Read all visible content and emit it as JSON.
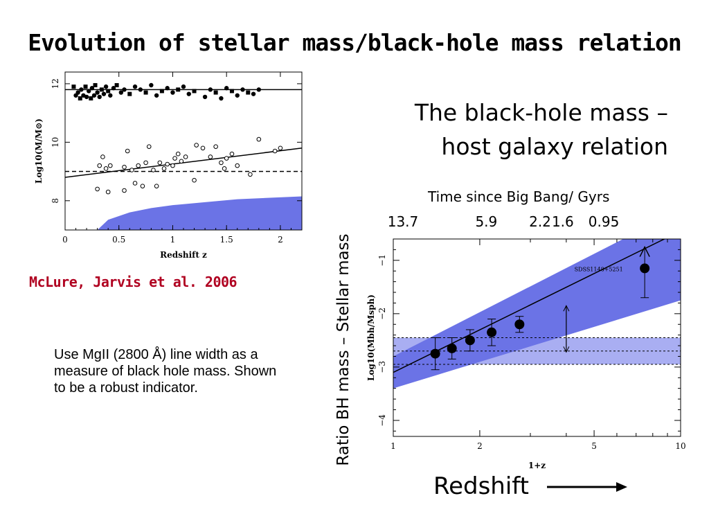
{
  "slide": {
    "title": "Evolution of stellar mass/black-hole mass relation",
    "subtitle_line1": "The black-hole mass –",
    "subtitle_line2": "host galaxy relation",
    "citation": "McLure, Jarvis et al. 2006",
    "note": "Use MgII (2800 Å) line width as a measure of black hole mass. Shown to be a robust indicator.",
    "time_axis_label": "Time since Big Bang/ Gyrs",
    "ratio_label": "Ratio BH mass – Stellar mass",
    "redshift_label": "Redshift"
  },
  "chart_data": [
    {
      "type": "scatter",
      "xlabel": "Redshift z",
      "ylabel": "Log10(M/M⊙)",
      "xlim": [
        0,
        2.2
      ],
      "ylim": [
        7.0,
        12.4
      ],
      "x_ticks": [
        "0",
        "0.5",
        "1",
        "1.5",
        "2"
      ],
      "y_ticks": [
        "8",
        "10",
        "12"
      ],
      "colors": {
        "band": "#6b73e6",
        "points": "#000000"
      },
      "series": [
        {
          "marker": "filled-square-circle",
          "points": [
            [
              0.08,
              11.9
            ],
            [
              0.1,
              11.6
            ],
            [
              0.12,
              11.7
            ],
            [
              0.14,
              11.5
            ],
            [
              0.15,
              11.8
            ],
            [
              0.17,
              11.6
            ],
            [
              0.19,
              11.9
            ],
            [
              0.2,
              11.55
            ],
            [
              0.22,
              11.75
            ],
            [
              0.24,
              11.5
            ],
            [
              0.25,
              11.85
            ],
            [
              0.27,
              11.6
            ],
            [
              0.28,
              11.95
            ],
            [
              0.3,
              11.7
            ],
            [
              0.32,
              11.55
            ],
            [
              0.34,
              11.8
            ],
            [
              0.36,
              11.65
            ],
            [
              0.38,
              11.9
            ],
            [
              0.4,
              11.75
            ],
            [
              0.42,
              11.6
            ],
            [
              0.45,
              11.85
            ],
            [
              0.48,
              11.95
            ],
            [
              0.52,
              11.7
            ],
            [
              0.55,
              11.8
            ],
            [
              0.6,
              11.65
            ],
            [
              0.65,
              11.9
            ],
            [
              0.7,
              11.8
            ],
            [
              0.75,
              11.7
            ],
            [
              0.8,
              11.95
            ],
            [
              0.85,
              11.6
            ],
            [
              0.9,
              11.75
            ],
            [
              0.95,
              11.85
            ],
            [
              1.0,
              11.7
            ],
            [
              1.05,
              11.8
            ],
            [
              1.1,
              11.9
            ],
            [
              1.15,
              11.65
            ],
            [
              1.2,
              11.75
            ],
            [
              1.3,
              11.55
            ],
            [
              1.35,
              11.8
            ],
            [
              1.4,
              11.7
            ],
            [
              1.45,
              11.5
            ],
            [
              1.5,
              11.85
            ],
            [
              1.55,
              11.75
            ],
            [
              1.6,
              11.6
            ],
            [
              1.65,
              11.8
            ],
            [
              1.7,
              11.7
            ],
            [
              1.75,
              11.65
            ],
            [
              1.8,
              11.8
            ]
          ]
        },
        {
          "marker": "open-circle",
          "points": [
            [
              0.3,
              8.4
            ],
            [
              0.32,
              9.2
            ],
            [
              0.35,
              9.5
            ],
            [
              0.38,
              9.1
            ],
            [
              0.4,
              8.3
            ],
            [
              0.42,
              9.2
            ],
            [
              0.55,
              9.15
            ],
            [
              0.55,
              8.35
            ],
            [
              0.58,
              9.7
            ],
            [
              0.62,
              9.05
            ],
            [
              0.65,
              8.6
            ],
            [
              0.68,
              9.2
            ],
            [
              0.72,
              8.5
            ],
            [
              0.75,
              9.3
            ],
            [
              0.78,
              9.85
            ],
            [
              0.82,
              9.05
            ],
            [
              0.85,
              8.5
            ],
            [
              0.88,
              9.3
            ],
            [
              0.92,
              9.1
            ],
            [
              0.95,
              9.25
            ],
            [
              1.0,
              9.2
            ],
            [
              1.02,
              9.45
            ],
            [
              1.05,
              9.6
            ],
            [
              1.08,
              9.35
            ],
            [
              1.12,
              9.5
            ],
            [
              1.2,
              8.7
            ],
            [
              1.22,
              9.9
            ],
            [
              1.28,
              9.8
            ],
            [
              1.35,
              9.5
            ],
            [
              1.4,
              9.85
            ],
            [
              1.45,
              9.3
            ],
            [
              1.48,
              9.1
            ],
            [
              1.5,
              9.45
            ],
            [
              1.55,
              9.6
            ],
            [
              1.6,
              9.2
            ],
            [
              1.72,
              8.9
            ],
            [
              1.8,
              10.1
            ],
            [
              1.95,
              9.7
            ],
            [
              2.0,
              9.8
            ]
          ]
        }
      ],
      "lines": [
        {
          "style": "solid",
          "from": [
            0,
            11.8
          ],
          "to": [
            2.2,
            11.8
          ]
        },
        {
          "style": "solid",
          "from": [
            0,
            8.8
          ],
          "to": [
            2.2,
            9.8
          ]
        },
        {
          "style": "dashed",
          "from": [
            0,
            9.0
          ],
          "to": [
            2.2,
            9.0
          ]
        }
      ],
      "band_upper": [
        [
          0.3,
          7.0
        ],
        [
          0.4,
          7.35
        ],
        [
          0.6,
          7.6
        ],
        [
          0.8,
          7.75
        ],
        [
          1.0,
          7.85
        ],
        [
          1.3,
          7.95
        ],
        [
          1.6,
          8.05
        ],
        [
          1.9,
          8.1
        ],
        [
          2.2,
          8.15
        ]
      ]
    },
    {
      "type": "line",
      "xlabel": "1+z",
      "ylabel": "Log10(Mbh/Msph)",
      "xscale": "log",
      "xlim": [
        1,
        10
      ],
      "ylim": [
        -4.3,
        -0.6
      ],
      "x_ticks": [
        "1",
        "2",
        "5",
        "10"
      ],
      "y_ticks": [
        "-1",
        "-2",
        "-3",
        "-4"
      ],
      "top_axis_ticks": [
        {
          "label": "13.7",
          "x": 1.0
        },
        {
          "label": "5.9",
          "x": 1.95
        },
        {
          "label": "2.2",
          "x": 3.0
        },
        {
          "label": "1.6",
          "x": 3.6
        },
        {
          "label": "0.95",
          "x": 5.0
        }
      ],
      "annotation": {
        "text": "SDSS1148+5251",
        "x": 6.3,
        "y": -1.15
      },
      "colors": {
        "band": "#6b73e6",
        "local_band": "#a9aef2",
        "points": "#000000"
      },
      "points": [
        {
          "x": 1.4,
          "y": -2.75,
          "err": 0.3
        },
        {
          "x": 1.6,
          "y": -2.65,
          "err": 0.2
        },
        {
          "x": 1.85,
          "y": -2.5,
          "err": 0.2
        },
        {
          "x": 2.2,
          "y": -2.35,
          "err": 0.25
        },
        {
          "x": 2.75,
          "y": -2.2,
          "err": 0.15
        },
        {
          "x": 7.5,
          "y": -1.15,
          "err_low": 0.55,
          "err_high": 0.4,
          "arrow": true
        }
      ],
      "fit_line": {
        "from": [
          1,
          -3.1
        ],
        "to": [
          10,
          -0.45
        ]
      },
      "fit_band": {
        "lower": [
          [
            1,
            -3.4
          ],
          [
            10,
            -1.75
          ]
        ],
        "upper": [
          [
            1,
            -2.8
          ],
          [
            10,
            -0.05
          ]
        ]
      },
      "local_band": {
        "center": -2.7,
        "low": -2.95,
        "high": -2.45
      },
      "offset_arrow": {
        "x": 4.0,
        "from": -2.72,
        "to": -1.85
      }
    }
  ]
}
